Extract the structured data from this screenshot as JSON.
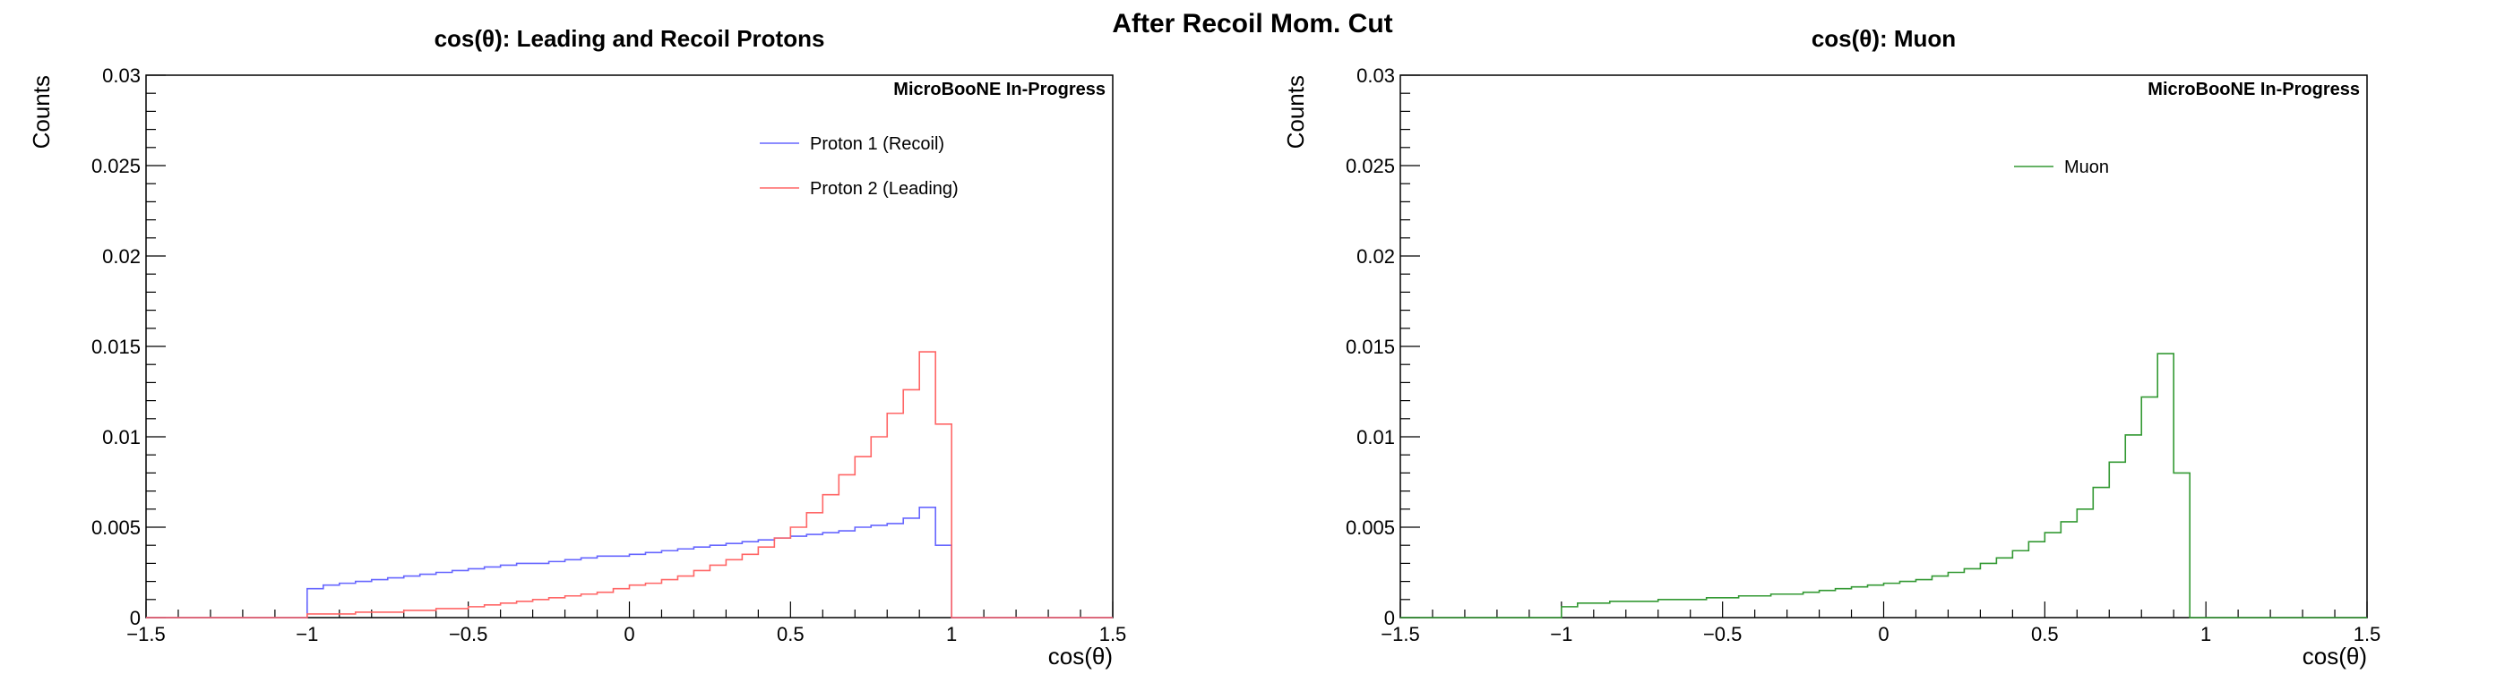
{
  "page_title": "After Recoil Mom. Cut",
  "chart_data": [
    {
      "type": "histogram",
      "title": "cos(θ): Leading and Recoil Protons",
      "xlabel": "cos(θ)",
      "ylabel": "Counts",
      "xlim": [
        -1.5,
        1.5
      ],
      "ylim": [
        0,
        0.03
      ],
      "xticks": [
        "−1.5",
        "−1",
        "−0.5",
        "0",
        "0.5",
        "1",
        "1.5"
      ],
      "xtick_values": [
        -1.5,
        -1,
        -0.5,
        0,
        0.5,
        1,
        1.5
      ],
      "yticks": [
        "0",
        "0.005",
        "0.01",
        "0.015",
        "0.02",
        "0.025",
        "0.03"
      ],
      "ytick_values": [
        0,
        0.005,
        0.01,
        0.015,
        0.02,
        0.025,
        0.03
      ],
      "watermark": "MicroBooNE In-Progress",
      "legend_position": "top-right",
      "bin_edges": [
        -1.0,
        -0.95,
        -0.9,
        -0.85,
        -0.8,
        -0.75,
        -0.7,
        -0.65,
        -0.6,
        -0.55,
        -0.5,
        -0.45,
        -0.4,
        -0.35,
        -0.3,
        -0.25,
        -0.2,
        -0.15,
        -0.1,
        -0.05,
        0.0,
        0.05,
        0.1,
        0.15,
        0.2,
        0.25,
        0.3,
        0.35,
        0.4,
        0.45,
        0.5,
        0.55,
        0.6,
        0.65,
        0.7,
        0.75,
        0.8,
        0.85,
        0.9,
        0.95,
        1.0
      ],
      "series": [
        {
          "name": "Proton 1 (Recoil)",
          "color": "#6666ff",
          "values": [
            0.0016,
            0.0018,
            0.0019,
            0.002,
            0.0021,
            0.0022,
            0.0023,
            0.0024,
            0.0025,
            0.0026,
            0.0027,
            0.0028,
            0.0029,
            0.003,
            0.003,
            0.0031,
            0.0032,
            0.0033,
            0.0034,
            0.0034,
            0.0035,
            0.0036,
            0.0037,
            0.0038,
            0.0039,
            0.004,
            0.0041,
            0.0042,
            0.0043,
            0.0044,
            0.0045,
            0.0046,
            0.0047,
            0.0048,
            0.005,
            0.0051,
            0.0052,
            0.0055,
            0.0061,
            0.004
          ]
        },
        {
          "name": "Proton 2 (Leading)",
          "color": "#ff6666",
          "values": [
            0.0002,
            0.0002,
            0.0002,
            0.0003,
            0.0003,
            0.0003,
            0.0004,
            0.0004,
            0.0005,
            0.0005,
            0.0006,
            0.0007,
            0.0008,
            0.0009,
            0.001,
            0.0011,
            0.0012,
            0.0013,
            0.0014,
            0.0016,
            0.0018,
            0.0019,
            0.0021,
            0.0023,
            0.0026,
            0.0029,
            0.0032,
            0.0035,
            0.0039,
            0.0044,
            0.005,
            0.0058,
            0.0068,
            0.0079,
            0.0089,
            0.01,
            0.0113,
            0.0126,
            0.0147,
            0.0107
          ]
        }
      ]
    },
    {
      "type": "histogram",
      "title": "cos(θ): Muon",
      "xlabel": "cos(θ)",
      "ylabel": "Counts",
      "xlim": [
        -1.5,
        1.5
      ],
      "ylim": [
        0,
        0.03
      ],
      "xticks": [
        "−1.5",
        "−1",
        "−0.5",
        "0",
        "0.5",
        "1",
        "1.5"
      ],
      "xtick_values": [
        -1.5,
        -1,
        -0.5,
        0,
        0.5,
        1,
        1.5
      ],
      "yticks": [
        "0",
        "0.005",
        "0.01",
        "0.015",
        "0.02",
        "0.025",
        "0.03"
      ],
      "ytick_values": [
        0,
        0.005,
        0.01,
        0.015,
        0.02,
        0.025,
        0.03
      ],
      "watermark": "MicroBooNE In-Progress",
      "legend_position": "top-right",
      "bin_edges": [
        -1.0,
        -0.95,
        -0.9,
        -0.85,
        -0.8,
        -0.75,
        -0.7,
        -0.65,
        -0.6,
        -0.55,
        -0.5,
        -0.45,
        -0.4,
        -0.35,
        -0.3,
        -0.25,
        -0.2,
        -0.15,
        -0.1,
        -0.05,
        0.0,
        0.05,
        0.1,
        0.15,
        0.2,
        0.25,
        0.3,
        0.35,
        0.4,
        0.45,
        0.5,
        0.55,
        0.6,
        0.65,
        0.7,
        0.75,
        0.8,
        0.85,
        0.9,
        0.95,
        1.0
      ],
      "series": [
        {
          "name": "Muon",
          "color": "#339933",
          "values": [
            0.0006,
            0.0008,
            0.0008,
            0.0009,
            0.0009,
            0.0009,
            0.001,
            0.001,
            0.001,
            0.0011,
            0.0011,
            0.0012,
            0.0012,
            0.0013,
            0.0013,
            0.0014,
            0.0015,
            0.0016,
            0.0017,
            0.0018,
            0.0019,
            0.002,
            0.0021,
            0.0023,
            0.0025,
            0.0027,
            0.003,
            0.0033,
            0.0037,
            0.0042,
            0.0047,
            0.0053,
            0.006,
            0.0072,
            0.0086,
            0.0101,
            0.0122,
            0.0146,
            0.008,
            0.0
          ]
        }
      ]
    }
  ]
}
